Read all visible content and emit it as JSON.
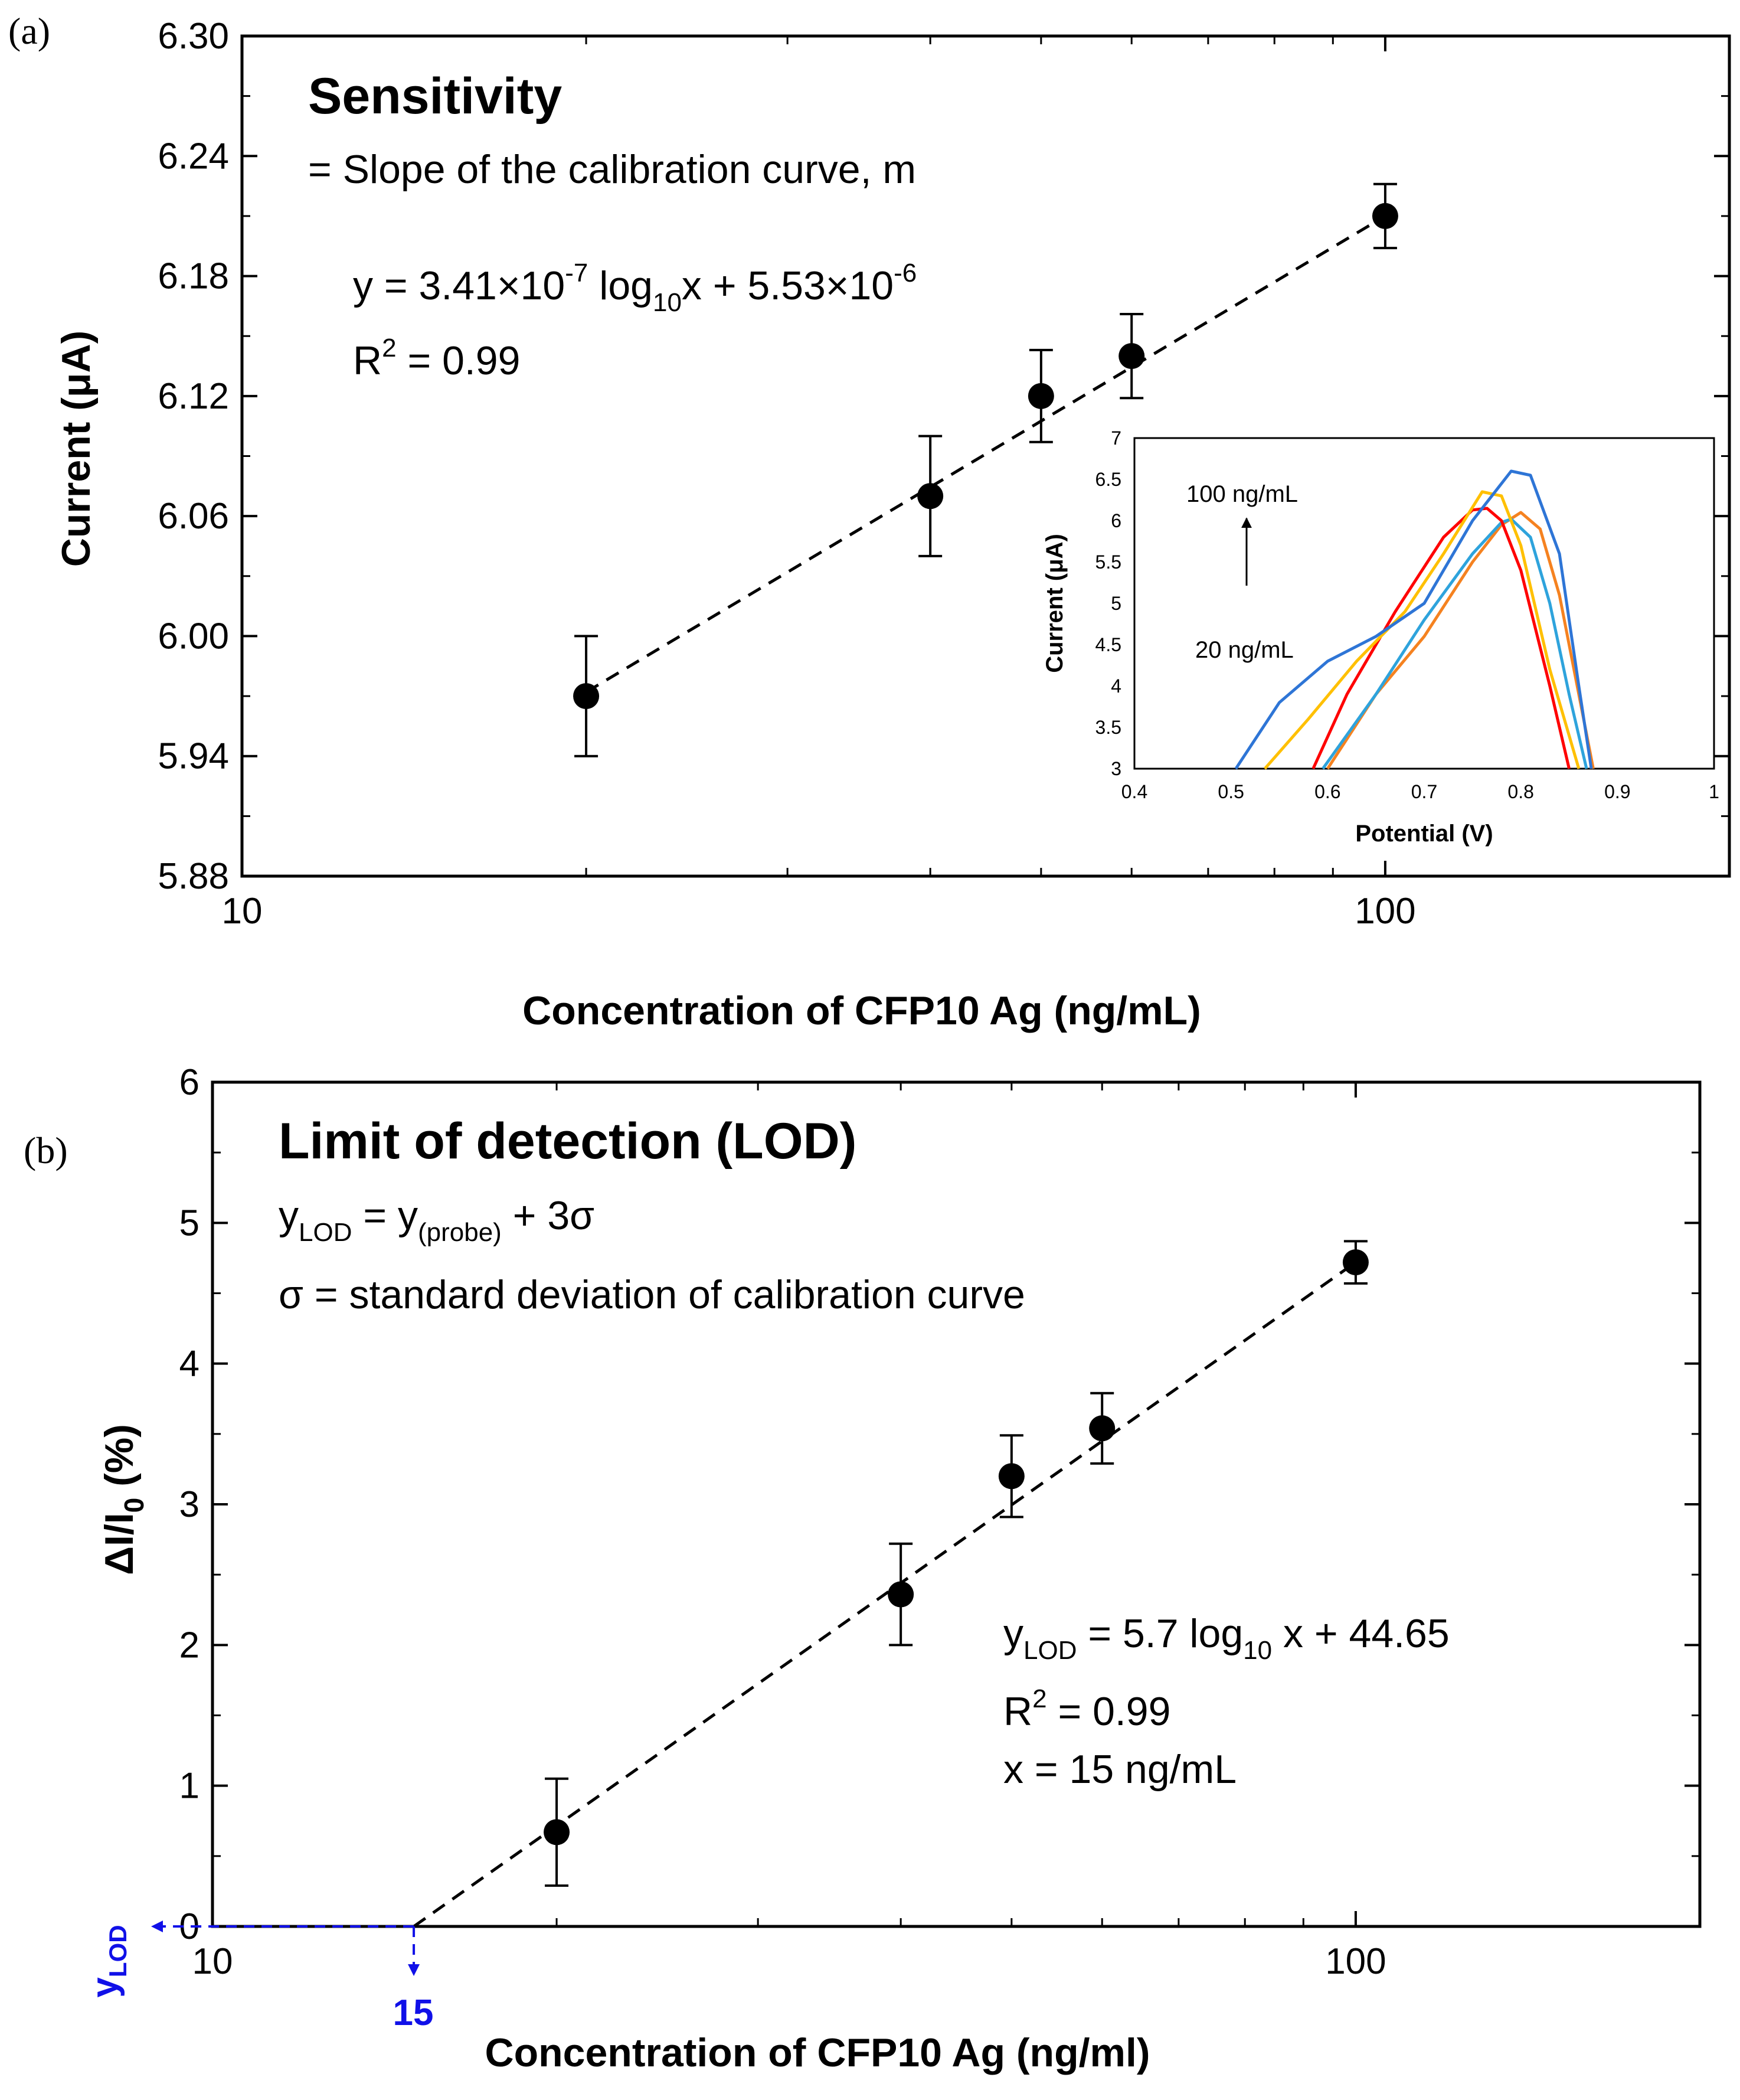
{
  "chart_data": [
    {
      "panel": "(a)",
      "type": "scatter",
      "title": "Sensitivity",
      "subtitle": "= Slope of the calibration curve, m",
      "equation": {
        "base": "y = 3.41×10",
        "exp1": "-7",
        "mid": " log",
        "sub": "10",
        "tail": "x + 5.53×10",
        "exp2": "-6"
      },
      "r2": {
        "base": "R",
        "sup": "2",
        "rest": " = 0.99"
      },
      "xlabel": "Concentration of CFP10 Ag (ng/mL)",
      "ylabel": "Current (μA)",
      "xscale": "log",
      "xlim": [
        10,
        200
      ],
      "ylim": [
        5.88,
        6.3
      ],
      "yticks": [
        "6.30",
        "6.24",
        "6.18",
        "6.12",
        "6.06",
        "6.00",
        "5.94",
        "5.88"
      ],
      "xticks": [
        "10",
        "100"
      ],
      "x": [
        20,
        40,
        50,
        60,
        100
      ],
      "y": [
        5.97,
        6.07,
        6.12,
        6.14,
        6.21
      ],
      "err": [
        0.03,
        0.03,
        0.023,
        0.021,
        0.016
      ],
      "fit": {
        "x": [
          20,
          100
        ],
        "y": [
          5.972,
          6.21
        ],
        "style": "dashed"
      },
      "inset": {
        "type": "line",
        "xlabel": "Potential (V)",
        "ylabel": "Current (μA)",
        "xlim": [
          0.4,
          1.0
        ],
        "ylim": [
          3,
          7
        ],
        "xticks": [
          "0.4",
          "0.5",
          "0.6",
          "0.7",
          "0.8",
          "0.9",
          "1"
        ],
        "yticks": [
          "7",
          "6.5",
          "6",
          "5.5",
          "5",
          "4.5",
          "4",
          "3.5",
          "3"
        ],
        "annotation_top": "100 ng/mL",
        "annotation_bottom": "20 ng/mL",
        "series": [
          {
            "name": "curve-1",
            "color": "#f58220",
            "x": [
              0.6,
              0.65,
              0.7,
              0.75,
              0.78,
              0.8,
              0.82,
              0.84,
              0.86,
              0.875
            ],
            "y": [
              3.0,
              3.9,
              4.6,
              5.5,
              5.95,
              6.1,
              5.9,
              5.1,
              3.9,
              3.0
            ]
          },
          {
            "name": "curve-2",
            "color": "#2ea3dc",
            "x": [
              0.595,
              0.65,
              0.7,
              0.75,
              0.78,
              0.79,
              0.81,
              0.83,
              0.85,
              0.868
            ],
            "y": [
              3.0,
              3.9,
              4.8,
              5.6,
              5.98,
              6.02,
              5.8,
              5.0,
              3.9,
              3.0
            ]
          },
          {
            "name": "curve-3",
            "color": "#ff0000",
            "x": [
              0.585,
              0.62,
              0.67,
              0.72,
              0.75,
              0.765,
              0.78,
              0.8,
              0.83,
              0.85
            ],
            "y": [
              3.0,
              3.9,
              4.9,
              5.8,
              6.13,
              6.15,
              6.0,
              5.4,
              4.0,
              3.0
            ]
          },
          {
            "name": "curve-4",
            "color": "#ffc000",
            "x": [
              0.535,
              0.58,
              0.63,
              0.68,
              0.72,
              0.76,
              0.78,
              0.8,
              0.83,
              0.86
            ],
            "y": [
              3.0,
              3.6,
              4.3,
              4.9,
              5.6,
              6.35,
              6.3,
              5.7,
              4.2,
              3.0
            ]
          },
          {
            "name": "curve-5",
            "color": "#2e75d6",
            "x": [
              0.505,
              0.55,
              0.6,
              0.65,
              0.7,
              0.75,
              0.79,
              0.81,
              0.84,
              0.86,
              0.873
            ],
            "y": [
              3.0,
              3.8,
              4.3,
              4.6,
              5.0,
              6.0,
              6.6,
              6.55,
              5.6,
              4.0,
              3.0
            ]
          }
        ]
      }
    },
    {
      "panel": "(b)",
      "type": "scatter",
      "title": "Limit of detection (LOD)",
      "formula": {
        "y": "y",
        "lod": "LOD",
        "eq": " = y",
        "probe": "(probe)",
        "plus": " + 3σ"
      },
      "sigma_note": "σ = standard deviation of calibration curve",
      "equation": {
        "y": "y",
        "lod": "LOD",
        "mid": " = 5.7 log",
        "sub": "10",
        "tail": " x + 44.65"
      },
      "r2": {
        "base": "R",
        "sup": "2",
        "rest": " = 0.99"
      },
      "x_result": "x = 15 ng/mL",
      "xlabel": "Concentration of CFP10 Ag (ng/ml)",
      "ylabel": {
        "base": "ΔI/I",
        "sub": "0",
        "rest": " (%)"
      },
      "xscale": "log",
      "xlim": [
        10,
        200
      ],
      "ylim": [
        0,
        6
      ],
      "yticks": [
        "0",
        "1",
        "2",
        "3",
        "4",
        "5",
        "6"
      ],
      "xticks": [
        "10",
        "100"
      ],
      "x": [
        20,
        40,
        50,
        60,
        100
      ],
      "y": [
        0.67,
        2.36,
        3.2,
        3.54,
        4.72
      ],
      "err": [
        0.38,
        0.36,
        0.29,
        0.25,
        0.15
      ],
      "fit": {
        "x": [
          15,
          100
        ],
        "y": [
          0.0,
          4.72
        ],
        "style": "dashed"
      },
      "lod_marker": {
        "x": 15,
        "x_label": "15",
        "y_label": "y",
        "y_label_sub": "LOD",
        "color": "#1010e8"
      }
    }
  ]
}
